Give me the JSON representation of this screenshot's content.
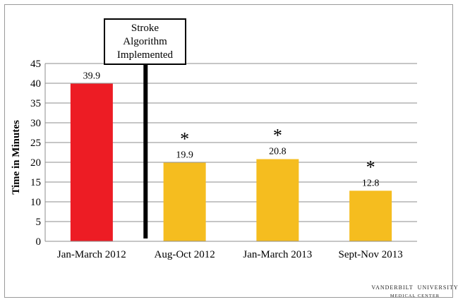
{
  "chart_data": {
    "type": "bar",
    "title": "",
    "xlabel": "",
    "ylabel": "Time in Minutes",
    "ylim": [
      0,
      45
    ],
    "yticks": [
      0,
      5,
      10,
      15,
      20,
      25,
      30,
      35,
      40,
      45
    ],
    "grid": true,
    "categories": [
      "Jan-March 2012",
      "Aug-Oct 2012",
      "Jan-March 2013",
      "Sept-Nov 2013"
    ],
    "values": [
      39.9,
      19.9,
      20.8,
      12.8
    ],
    "value_labels": [
      "39.9",
      "19.9",
      "20.8",
      "12.8"
    ],
    "significance_markers": [
      "",
      "*",
      "*",
      "*"
    ],
    "bar_colors": [
      "#ed1c24",
      "#f5bd1f",
      "#f5bd1f",
      "#f5bd1f"
    ],
    "annotation": {
      "lines": [
        "Stroke",
        "Algorithm",
        "Implemented"
      ],
      "position": "between Jan-March 2012 and Aug-Oct 2012"
    }
  },
  "logo": {
    "name_left": "VANDERBILT",
    "name_right": "UNIVERSITY",
    "subtitle": "MEDICAL CENTER",
    "mark_color": "#c9a227"
  }
}
